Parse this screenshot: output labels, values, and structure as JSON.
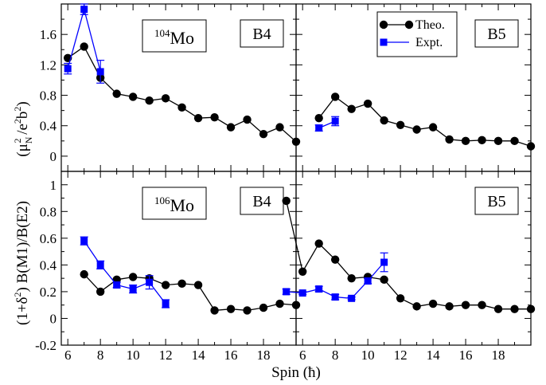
{
  "chart_data": {
    "type": "scatter",
    "xlabel": "Spin (ħ)",
    "ylabel_parts": {
      "top": "(μ",
      "top_sub": "N",
      "top_sup": "2",
      "top_rest": " /e",
      "top_sup2": "2",
      "top_rest2": "b",
      "top_sup3": "2",
      "top_close": ")",
      "bottom": "(1+δ",
      "bottom_sup": "2",
      "bottom_rest": ") B(M1)/B(E2)"
    },
    "xlim": [
      5.6,
      20.0
    ],
    "top_ylim": [
      -0.2,
      2.0
    ],
    "bottom_ylim": [
      -0.2,
      1.1
    ],
    "x_ticks": [
      6,
      8,
      10,
      12,
      14,
      16,
      18
    ],
    "top_y_ticks": [
      "0",
      "0.4",
      "0.8",
      "1.2",
      "1.6"
    ],
    "bottom_y_ticks": [
      "-0.2",
      "0",
      "0.2",
      "0.4",
      "0.6",
      "0.8",
      "1"
    ],
    "legend": {
      "theo": "Theo.",
      "expt": "Expt.",
      "placement": "top-right panel, top-left"
    },
    "colors": {
      "theo": "#000000",
      "expt": "#0000ff"
    },
    "panels": [
      {
        "id": "top-left",
        "nucleus_mass": "104",
        "nucleus_symbol": "Mo",
        "band": "B4",
        "theo": {
          "x": [
            6,
            7,
            8,
            9,
            10,
            11,
            12,
            13,
            14,
            15,
            16,
            17,
            18,
            19,
            20
          ],
          "y": [
            1.29,
            1.44,
            1.03,
            0.82,
            0.78,
            0.73,
            0.76,
            0.64,
            0.5,
            0.51,
            0.38,
            0.48,
            0.29,
            0.38,
            0.19
          ]
        },
        "expt": {
          "x": [
            6,
            7,
            8
          ],
          "y": [
            1.15,
            1.93,
            1.11
          ],
          "err": [
            0.07,
            0.07,
            0.15
          ]
        }
      },
      {
        "id": "top-right",
        "band": "B5",
        "theo": {
          "x": [
            7,
            8,
            9,
            10,
            11,
            12,
            13,
            14,
            15,
            16,
            17,
            18,
            19,
            20
          ],
          "y": [
            0.5,
            0.78,
            0.62,
            0.69,
            0.47,
            0.41,
            0.35,
            0.38,
            0.22,
            0.2,
            0.21,
            0.2,
            0.2,
            0.13
          ]
        },
        "expt": {
          "x": [
            7,
            8
          ],
          "y": [
            0.37,
            0.46
          ],
          "err": [
            0.04,
            0.06
          ]
        }
      },
      {
        "id": "bottom-left",
        "nucleus_mass": "106",
        "nucleus_symbol": "Mo",
        "band": "B4",
        "theo": {
          "x": [
            7,
            8,
            9,
            10,
            11,
            12,
            13,
            14,
            15,
            16,
            17,
            18,
            19,
            20
          ],
          "y": [
            0.33,
            0.2,
            0.29,
            0.31,
            0.3,
            0.25,
            0.26,
            0.25,
            0.06,
            0.07,
            0.06,
            0.08,
            0.11,
            0.1
          ]
        },
        "expt": {
          "x": [
            7,
            8,
            9,
            10,
            11,
            12
          ],
          "y": [
            0.58,
            0.4,
            0.25,
            0.22,
            0.27,
            0.11
          ],
          "err": [
            0.03,
            0.03,
            0.02,
            0.03,
            0.05,
            0.03
          ]
        }
      },
      {
        "id": "bottom-right",
        "band": "B5",
        "theo": {
          "x": [
            5,
            6,
            7,
            8,
            9,
            10,
            11,
            12,
            13,
            14,
            15,
            16,
            17,
            18,
            19,
            20
          ],
          "y": [
            0.88,
            0.35,
            0.56,
            0.44,
            0.3,
            0.31,
            0.29,
            0.15,
            0.09,
            0.11,
            0.09,
            0.1,
            0.1,
            0.07,
            0.07,
            0.07
          ]
        },
        "expt": {
          "x": [
            5,
            6,
            7,
            8,
            9,
            10,
            11
          ],
          "y": [
            0.2,
            0.19,
            0.22,
            0.16,
            0.15,
            0.28,
            0.42
          ],
          "err": [
            0.02,
            0.01,
            0.02,
            0.02,
            0.01,
            0.02,
            0.07
          ]
        }
      }
    ]
  }
}
